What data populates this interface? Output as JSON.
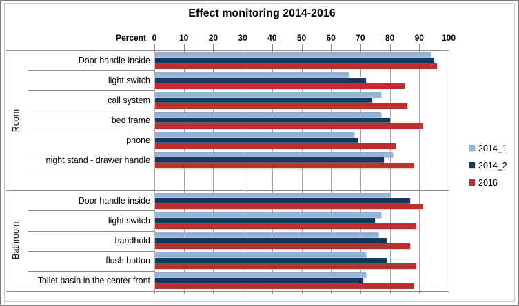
{
  "title": "Effect monitoring 2014-2016",
  "chart_data": {
    "type": "bar",
    "orientation": "horizontal",
    "title": "Effect monitoring 2014-2016",
    "xlabel": "Percent",
    "xlim": [
      0,
      100
    ],
    "xticks": [
      0,
      10,
      20,
      30,
      40,
      50,
      60,
      70,
      80,
      90,
      100
    ],
    "grid": true,
    "legend_position": "right",
    "series_names": [
      "2014_1",
      "2014_2",
      "2016"
    ],
    "series_colors": [
      "#95B3D7",
      "#17375E",
      "#BE2E2E"
    ],
    "groups": [
      {
        "label": "Room",
        "items": [
          {
            "label": "Door handle inside",
            "values": [
              94,
              95,
              96
            ]
          },
          {
            "label": "light switch",
            "values": [
              66,
              72,
              85
            ]
          },
          {
            "label": "call system",
            "values": [
              77,
              74,
              86
            ]
          },
          {
            "label": "bed frame",
            "values": [
              77,
              80,
              91
            ]
          },
          {
            "label": "phone",
            "values": [
              68,
              69,
              82
            ]
          },
          {
            "label": "night stand - drawer handle",
            "values": [
              81,
              78,
              88
            ]
          }
        ]
      },
      {
        "label": "Bathroom",
        "items": [
          {
            "label": "Door handle inside",
            "values": [
              80,
              87,
              91
            ]
          },
          {
            "label": "light switch",
            "values": [
              77,
              75,
              89
            ]
          },
          {
            "label": "handhold",
            "values": [
              76,
              79,
              87
            ]
          },
          {
            "label": "flush button",
            "values": [
              72,
              79,
              89
            ]
          },
          {
            "label": "Toilet basin in the center front",
            "values": [
              72,
              71,
              88
            ]
          }
        ]
      }
    ]
  }
}
